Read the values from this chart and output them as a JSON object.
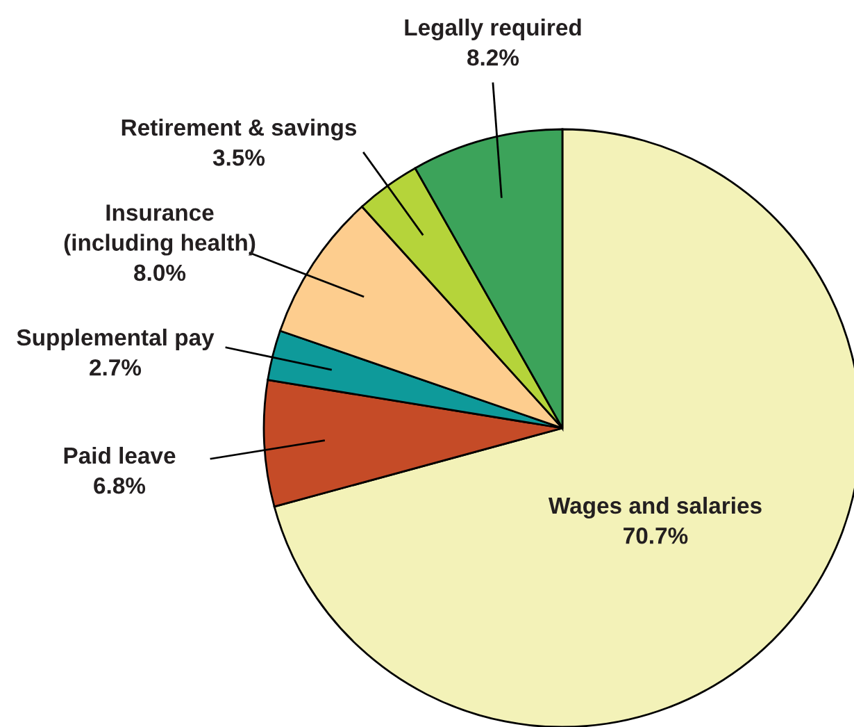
{
  "chart_data": {
    "type": "pie",
    "categories": [
      "Wages and salaries",
      "Paid leave",
      "Supplemental pay",
      "Insurance\n(including health)",
      "Retirement & savings",
      "Legally required"
    ],
    "values": [
      70.7,
      6.8,
      2.7,
      8.0,
      3.5,
      8.2
    ],
    "value_labels": [
      "70.7%",
      "6.8%",
      "2.7%",
      "8.0%",
      "3.5%",
      "8.2%"
    ],
    "colors": [
      "#f3f2b8",
      "#c54b27",
      "#0e9a9a",
      "#fdcd8e",
      "#b5d43a",
      "#3ca35a"
    ]
  }
}
